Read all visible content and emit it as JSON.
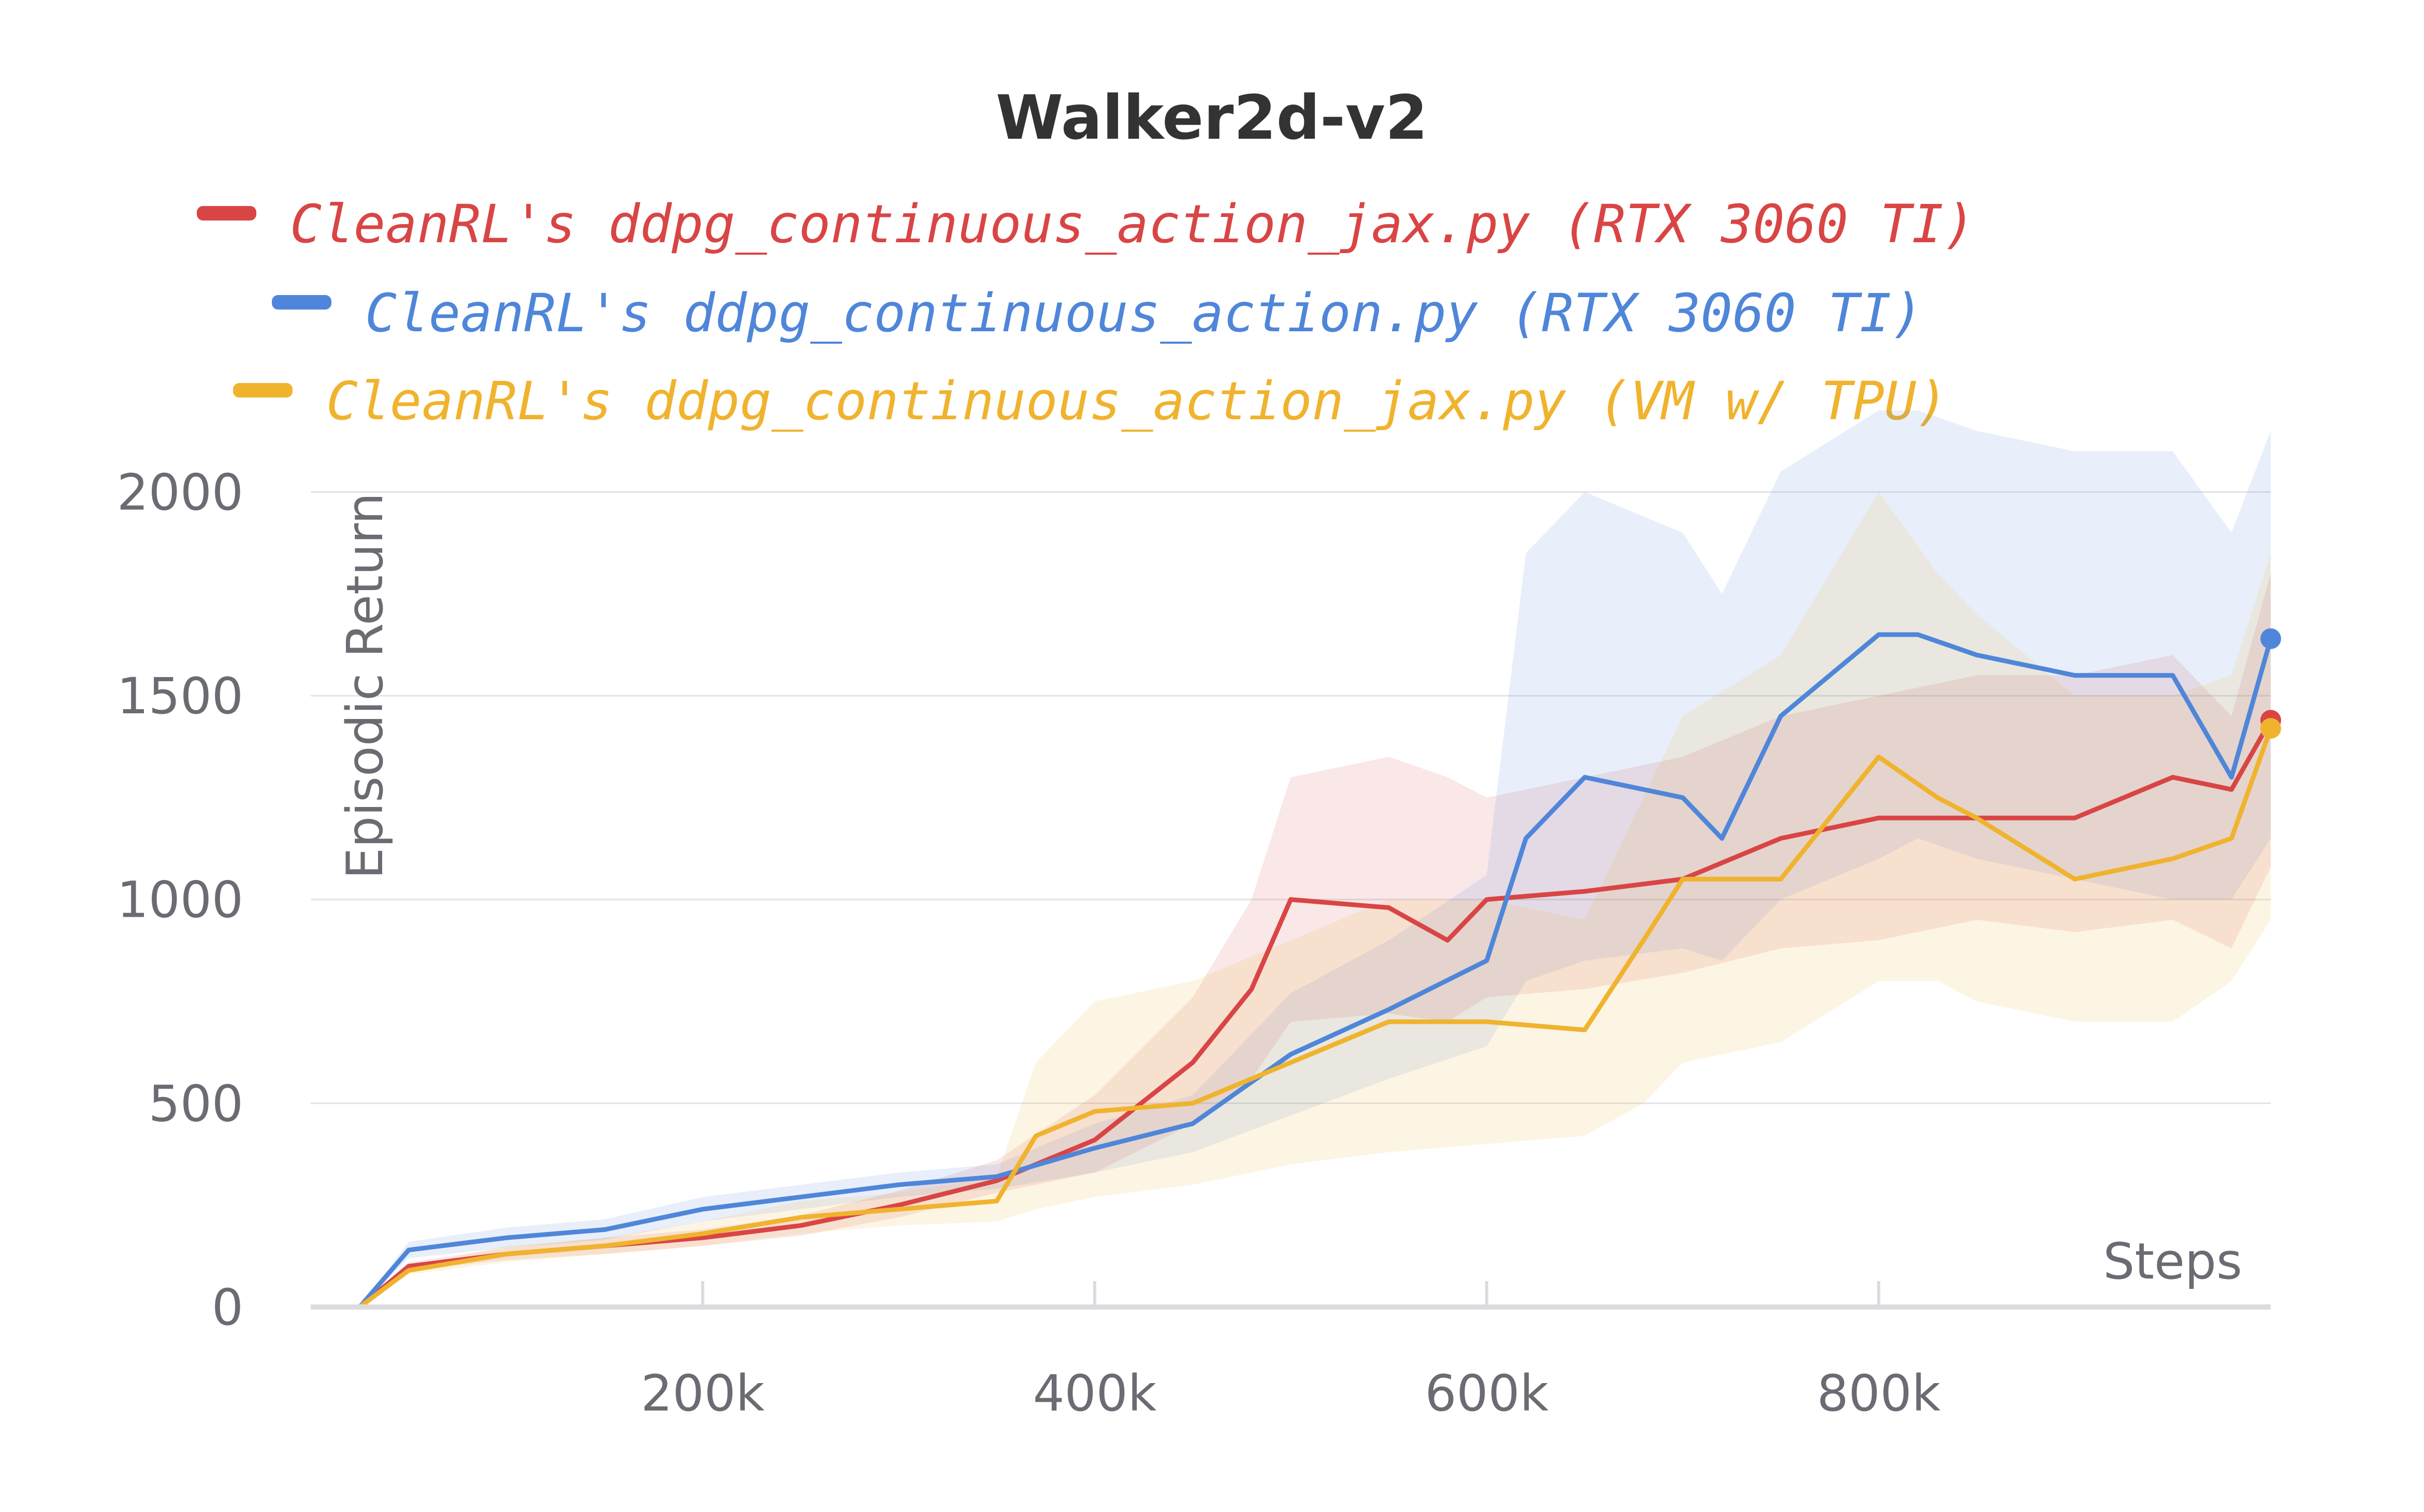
{
  "chart_data": {
    "type": "line",
    "title": "Walker2d-v2",
    "xlabel": "Steps",
    "ylabel": "Episodic Return",
    "xlim": [
      0,
      1000000
    ],
    "ylim": [
      0,
      2200
    ],
    "x_ticks": [
      200000,
      400000,
      600000,
      800000
    ],
    "x_tick_labels": [
      "200k",
      "400k",
      "600k",
      "800k"
    ],
    "y_ticks": [
      0,
      500,
      1000,
      1500,
      2000
    ],
    "y_tick_labels": [
      "0",
      "500",
      "1000",
      "1500",
      "2000"
    ],
    "grid": true,
    "legend_position": "top-center",
    "series": [
      {
        "name": "CleanRL's ddpg_continuous_action_jax.py (RTX 3060 TI)",
        "color": "#d94545",
        "x": [
          25000,
          50000,
          100000,
          150000,
          200000,
          250000,
          300000,
          350000,
          400000,
          450000,
          480000,
          500000,
          550000,
          580000,
          600000,
          650000,
          700000,
          750000,
          800000,
          850000,
          900000,
          950000,
          980000,
          1000000
        ],
        "y": [
          0,
          100,
          130,
          150,
          170,
          200,
          250,
          310,
          410,
          600,
          780,
          1000,
          980,
          900,
          1000,
          1020,
          1050,
          1150,
          1200,
          1200,
          1200,
          1300,
          1270,
          1440
        ],
        "band_lower": [
          0,
          90,
          115,
          130,
          150,
          175,
          220,
          280,
          330,
          450,
          560,
          700,
          720,
          700,
          760,
          780,
          820,
          880,
          900,
          950,
          920,
          950,
          880,
          1080
        ],
        "band_upper": [
          0,
          110,
          145,
          170,
          190,
          225,
          285,
          360,
          520,
          760,
          1000,
          1300,
          1350,
          1300,
          1250,
          1300,
          1350,
          1450,
          1500,
          1550,
          1550,
          1600,
          1450,
          1800
        ]
      },
      {
        "name": "CleanRL's ddpg_continuous_action.py (RTX 3060 TI)",
        "color": "#4f86d9",
        "x": [
          25000,
          50000,
          100000,
          150000,
          200000,
          250000,
          300000,
          350000,
          400000,
          450000,
          500000,
          550000,
          600000,
          620000,
          650000,
          700000,
          720000,
          750000,
          800000,
          820000,
          850000,
          900000,
          950000,
          980000,
          1000000
        ],
        "y": [
          0,
          140,
          170,
          190,
          240,
          270,
          300,
          320,
          390,
          450,
          620,
          730,
          850,
          1150,
          1300,
          1250,
          1150,
          1450,
          1650,
          1650,
          1600,
          1550,
          1550,
          1300,
          1640
        ],
        "band_lower": [
          0,
          120,
          145,
          165,
          210,
          240,
          270,
          290,
          330,
          380,
          470,
          560,
          640,
          800,
          850,
          880,
          850,
          1000,
          1100,
          1150,
          1100,
          1050,
          1000,
          1000,
          1150
        ],
        "band_upper": [
          0,
          160,
          195,
          215,
          270,
          300,
          330,
          350,
          450,
          520,
          770,
          900,
          1060,
          1850,
          2000,
          1900,
          1750,
          2050,
          2200,
          2200,
          2150,
          2100,
          2100,
          1900,
          2150
        ]
      },
      {
        "name": "CleanRL's ddpg_continuous_action_jax.py (VM w/ TPU)",
        "color": "#f0b32e",
        "x": [
          25000,
          50000,
          100000,
          150000,
          200000,
          250000,
          300000,
          350000,
          370000,
          400000,
          450000,
          500000,
          550000,
          600000,
          650000,
          680000,
          700000,
          750000,
          800000,
          830000,
          850000,
          900000,
          950000,
          980000,
          1000000
        ],
        "y": [
          0,
          90,
          130,
          150,
          180,
          220,
          240,
          260,
          420,
          480,
          500,
          600,
          700,
          700,
          680,
          900,
          1050,
          1050,
          1350,
          1250,
          1200,
          1050,
          1100,
          1150,
          1420
        ],
        "band_lower": [
          0,
          80,
          110,
          130,
          150,
          180,
          200,
          210,
          240,
          270,
          300,
          350,
          380,
          400,
          420,
          500,
          600,
          650,
          800,
          800,
          750,
          700,
          700,
          800,
          950
        ],
        "band_upper": [
          0,
          100,
          150,
          170,
          210,
          260,
          280,
          320,
          600,
          750,
          800,
          900,
          1000,
          1000,
          950,
          1250,
          1450,
          1600,
          2000,
          1800,
          1700,
          1500,
          1500,
          1550,
          1850
        ]
      }
    ]
  }
}
